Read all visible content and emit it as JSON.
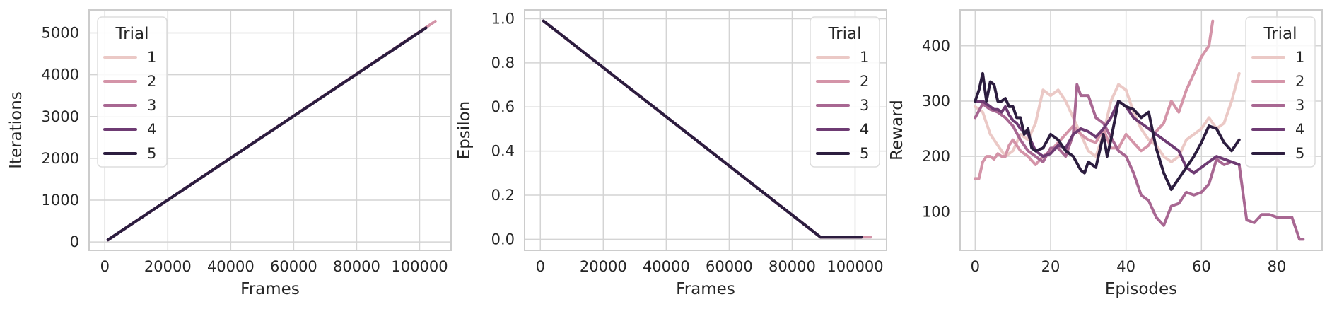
{
  "chart_data": [
    {
      "type": "line",
      "xlabel": "Frames",
      "ylabel": "Iterations",
      "xlim": [
        -5000,
        110000
      ],
      "ylim": [
        -200,
        5550
      ],
      "xticks": [
        0,
        20000,
        40000,
        60000,
        80000,
        100000
      ],
      "yticks": [
        0,
        1000,
        2000,
        3000,
        4000,
        5000
      ],
      "grid": true,
      "legend": {
        "title": "Trial",
        "position": "top-left"
      },
      "series": [
        {
          "name": "1",
          "color": "#ebc9c6",
          "x": [
            1000,
            102000
          ],
          "y": [
            50,
            5120
          ]
        },
        {
          "name": "2",
          "color": "#d494a8",
          "x": [
            1000,
            105000
          ],
          "y": [
            50,
            5280
          ]
        },
        {
          "name": "3",
          "color": "#a86792",
          "x": [
            1000,
            102000
          ],
          "y": [
            50,
            5120
          ]
        },
        {
          "name": "4",
          "color": "#6e3b73",
          "x": [
            1000,
            102000
          ],
          "y": [
            50,
            5120
          ]
        },
        {
          "name": "5",
          "color": "#2c1d3f",
          "x": [
            1000,
            102000
          ],
          "y": [
            50,
            5120
          ]
        }
      ]
    },
    {
      "type": "line",
      "xlabel": "Frames",
      "ylabel": "Epsilon",
      "xlim": [
        -5000,
        110000
      ],
      "ylim": [
        -0.05,
        1.04
      ],
      "xticks": [
        0,
        20000,
        40000,
        60000,
        80000,
        100000
      ],
      "yticks": [
        0.0,
        0.2,
        0.4,
        0.6,
        0.8,
        1.0
      ],
      "grid": true,
      "legend": {
        "title": "Trial",
        "position": "top-right"
      },
      "series": [
        {
          "name": "1",
          "color": "#ebc9c6",
          "x": [
            1000,
            89000,
            102000
          ],
          "y": [
            0.99,
            0.01,
            0.01
          ]
        },
        {
          "name": "2",
          "color": "#d494a8",
          "x": [
            1000,
            89000,
            105000
          ],
          "y": [
            0.99,
            0.01,
            0.01
          ]
        },
        {
          "name": "3",
          "color": "#a86792",
          "x": [
            1000,
            89000,
            102000
          ],
          "y": [
            0.99,
            0.01,
            0.01
          ]
        },
        {
          "name": "4",
          "color": "#6e3b73",
          "x": [
            1000,
            89000,
            102000
          ],
          "y": [
            0.99,
            0.01,
            0.01
          ]
        },
        {
          "name": "5",
          "color": "#2c1d3f",
          "x": [
            1000,
            89000,
            102000
          ],
          "y": [
            0.99,
            0.01,
            0.01
          ]
        }
      ]
    },
    {
      "type": "line",
      "xlabel": "Episodes",
      "ylabel": "Reward",
      "xlim": [
        -4,
        92
      ],
      "ylim": [
        30,
        465
      ],
      "xticks": [
        0,
        20,
        40,
        60,
        80
      ],
      "yticks": [
        100,
        200,
        300,
        400
      ],
      "grid": true,
      "legend": {
        "title": "Trial",
        "position": "top-right"
      },
      "series": [
        {
          "name": "1",
          "color": "#ebc9c6",
          "x": [
            0,
            2,
            4,
            6,
            8,
            10,
            12,
            14,
            16,
            18,
            20,
            22,
            24,
            26,
            28,
            30,
            32,
            34,
            36,
            38,
            40,
            42,
            44,
            46,
            48,
            50,
            52,
            54,
            56,
            58,
            60,
            62,
            64,
            66,
            68,
            70
          ],
          "y": [
            290,
            280,
            240,
            220,
            200,
            210,
            240,
            230,
            260,
            320,
            310,
            320,
            300,
            270,
            240,
            210,
            200,
            240,
            300,
            330,
            320,
            280,
            250,
            230,
            220,
            200,
            190,
            200,
            230,
            240,
            250,
            270,
            250,
            260,
            300,
            350
          ]
        },
        {
          "name": "2",
          "color": "#d494a8",
          "x": [
            0,
            1,
            2,
            3,
            4,
            5,
            6,
            7,
            8,
            9,
            10,
            12,
            14,
            16,
            18,
            20,
            22,
            24,
            26,
            28,
            30,
            32,
            34,
            36,
            38,
            40,
            42,
            44,
            46,
            48,
            50,
            52,
            54,
            56,
            58,
            60,
            62,
            63
          ],
          "y": [
            160,
            160,
            190,
            200,
            200,
            195,
            205,
            200,
            200,
            220,
            230,
            210,
            200,
            185,
            200,
            210,
            225,
            240,
            255,
            240,
            230,
            225,
            250,
            215,
            215,
            240,
            225,
            210,
            220,
            245,
            260,
            300,
            280,
            320,
            350,
            380,
            400,
            445
          ]
        },
        {
          "name": "3",
          "color": "#a86792",
          "x": [
            0,
            2,
            4,
            6,
            8,
            10,
            12,
            14,
            16,
            18,
            20,
            22,
            24,
            26,
            27,
            28,
            30,
            32,
            34,
            36,
            38,
            40,
            42,
            44,
            46,
            48,
            50,
            52,
            54,
            56,
            58,
            60,
            62,
            64,
            66,
            68,
            70,
            72,
            74,
            76,
            78,
            80,
            82,
            84,
            86,
            87
          ],
          "y": [
            270,
            295,
            285,
            280,
            270,
            255,
            230,
            210,
            200,
            190,
            215,
            215,
            200,
            240,
            330,
            310,
            310,
            270,
            260,
            235,
            210,
            200,
            170,
            130,
            120,
            90,
            75,
            110,
            115,
            135,
            130,
            135,
            150,
            195,
            185,
            190,
            185,
            85,
            80,
            95,
            95,
            90,
            90,
            90,
            50,
            50
          ]
        },
        {
          "name": "4",
          "color": "#6e3b73",
          "x": [
            0,
            1,
            2,
            3,
            4,
            5,
            6,
            7,
            8,
            9,
            10,
            11,
            12,
            13,
            14,
            16,
            18,
            20,
            22,
            24,
            26,
            28,
            30,
            32,
            34,
            36,
            38,
            40,
            42,
            44,
            46,
            48,
            50,
            52,
            54,
            56,
            58,
            60,
            62,
            64,
            66,
            68,
            70
          ],
          "y": [
            300,
            300,
            300,
            295,
            290,
            285,
            285,
            280,
            290,
            275,
            265,
            260,
            250,
            245,
            240,
            210,
            200,
            205,
            220,
            215,
            240,
            250,
            245,
            235,
            250,
            270,
            300,
            290,
            270,
            260,
            250,
            240,
            230,
            220,
            210,
            180,
            170,
            180,
            190,
            200,
            195,
            190,
            185
          ]
        },
        {
          "name": "5",
          "color": "#2c1d3f",
          "x": [
            0,
            1,
            2,
            3,
            4,
            5,
            6,
            7,
            8,
            9,
            10,
            11,
            12,
            13,
            14,
            15,
            16,
            18,
            20,
            22,
            24,
            26,
            28,
            29,
            30,
            32,
            34,
            35,
            36,
            38,
            40,
            42,
            44,
            46,
            48,
            50,
            52,
            54,
            56,
            58,
            60,
            62,
            64,
            66,
            68,
            70
          ],
          "y": [
            300,
            320,
            350,
            300,
            335,
            330,
            300,
            300,
            305,
            290,
            290,
            270,
            270,
            240,
            250,
            215,
            210,
            215,
            240,
            230,
            210,
            200,
            175,
            170,
            190,
            180,
            240,
            200,
            230,
            300,
            290,
            285,
            270,
            280,
            215,
            170,
            140,
            160,
            180,
            200,
            225,
            255,
            250,
            225,
            210,
            230
          ]
        }
      ]
    }
  ]
}
